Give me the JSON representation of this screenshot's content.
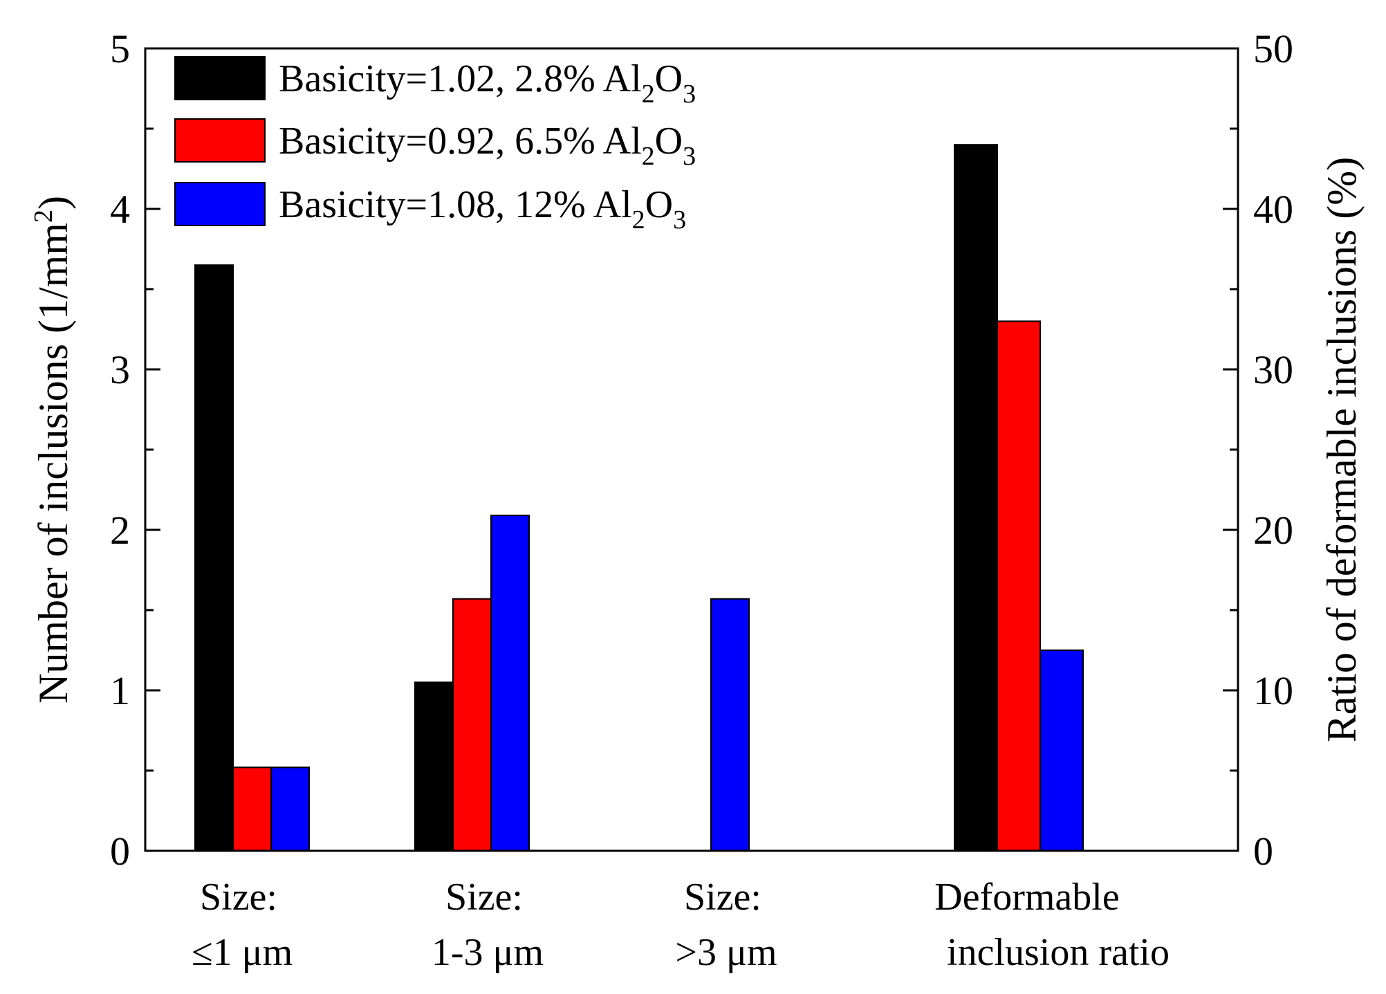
{
  "chart_data": {
    "type": "bar",
    "title": "",
    "categories": [
      {
        "line1": "Size:",
        "line2": "≤1 μm",
        "axis": "left"
      },
      {
        "line1": "Size:",
        "line2": "1-3 μm",
        "axis": "left"
      },
      {
        "line1": "Size:",
        "line2": ">3 μm",
        "axis": "left"
      },
      {
        "line1": "Deformable",
        "line2": "inclusion ratio",
        "axis": "right"
      }
    ],
    "series": [
      {
        "name": "Basicity=1.02, 2.8% Al2O3",
        "label_main": "Basicity=1.02, 2.8% Al",
        "label_sub1": "2",
        "label_mid": "O",
        "label_sub2": "3",
        "color": "#000000",
        "values": [
          3.65,
          1.05,
          0,
          44
        ]
      },
      {
        "name": "Basicity=0.92, 6.5% Al2O3",
        "label_main": "Basicity=0.92, 6.5% Al",
        "label_sub1": "2",
        "label_mid": "O",
        "label_sub2": "3",
        "color": "#ff0000",
        "values": [
          0.52,
          1.57,
          0,
          33
        ]
      },
      {
        "name": "Basicity=1.08, 12% Al2O3",
        "label_main": "Basicity=1.08, 12% Al",
        "label_sub1": "2",
        "label_mid": "O",
        "label_sub2": "3",
        "color": "#0000ff",
        "values": [
          0.52,
          2.09,
          1.57,
          12.5
        ]
      }
    ],
    "left_axis": {
      "label_main": "Number of inclusions (1/mm",
      "label_sup": "2",
      "label_end": ")",
      "ylim": [
        0,
        5
      ],
      "ticks": [
        "0",
        "1",
        "2",
        "3",
        "4",
        "5"
      ]
    },
    "right_axis": {
      "label": "Ratio of deformable inclusions (%)",
      "ylim": [
        0,
        50
      ],
      "ticks": [
        "0",
        "10",
        "20",
        "30",
        "40",
        "50"
      ]
    },
    "legend_position": "top-left",
    "grid": false
  }
}
